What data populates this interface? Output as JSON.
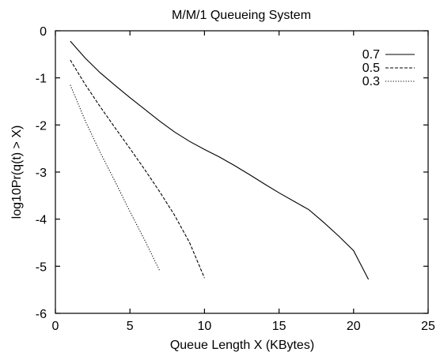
{
  "chart_data": {
    "type": "line",
    "title": "M/M/1 Queueing System",
    "xlabel": "Queue Length X (KBytes)",
    "ylabel": "log10Pr(q(t) > X)",
    "xlim": [
      0,
      25
    ],
    "ylim": [
      -6,
      0
    ],
    "xticks": [
      0,
      5,
      10,
      15,
      20,
      25
    ],
    "yticks": [
      0,
      -1,
      -2,
      -3,
      -4,
      -5,
      -6
    ],
    "grid": false,
    "legend_position": "top-right",
    "series": [
      {
        "name": "0.7",
        "line_style": "solid",
        "x": [
          1,
          2,
          3,
          4,
          5,
          6,
          7,
          8,
          9,
          10,
          11,
          12,
          13,
          14,
          15,
          16,
          17,
          18,
          19,
          20,
          21
        ],
        "y": [
          -0.22,
          -0.58,
          -0.89,
          -1.16,
          -1.42,
          -1.67,
          -1.92,
          -2.15,
          -2.35,
          -2.52,
          -2.68,
          -2.86,
          -3.05,
          -3.25,
          -3.44,
          -3.62,
          -3.8,
          -4.07,
          -4.36,
          -4.67,
          -5.28
        ]
      },
      {
        "name": "0.5",
        "line_style": "dashed",
        "x": [
          1,
          2,
          3,
          4,
          5,
          6,
          7,
          8,
          9,
          10
        ],
        "y": [
          -0.62,
          -1.14,
          -1.61,
          -2.06,
          -2.5,
          -2.95,
          -3.42,
          -3.92,
          -4.5,
          -5.25
        ]
      },
      {
        "name": "0.3",
        "line_style": "dotted",
        "x": [
          1,
          2,
          3,
          4,
          5,
          6,
          7
        ],
        "y": [
          -1.15,
          -1.91,
          -2.58,
          -3.2,
          -3.84,
          -4.45,
          -5.1
        ]
      }
    ]
  }
}
